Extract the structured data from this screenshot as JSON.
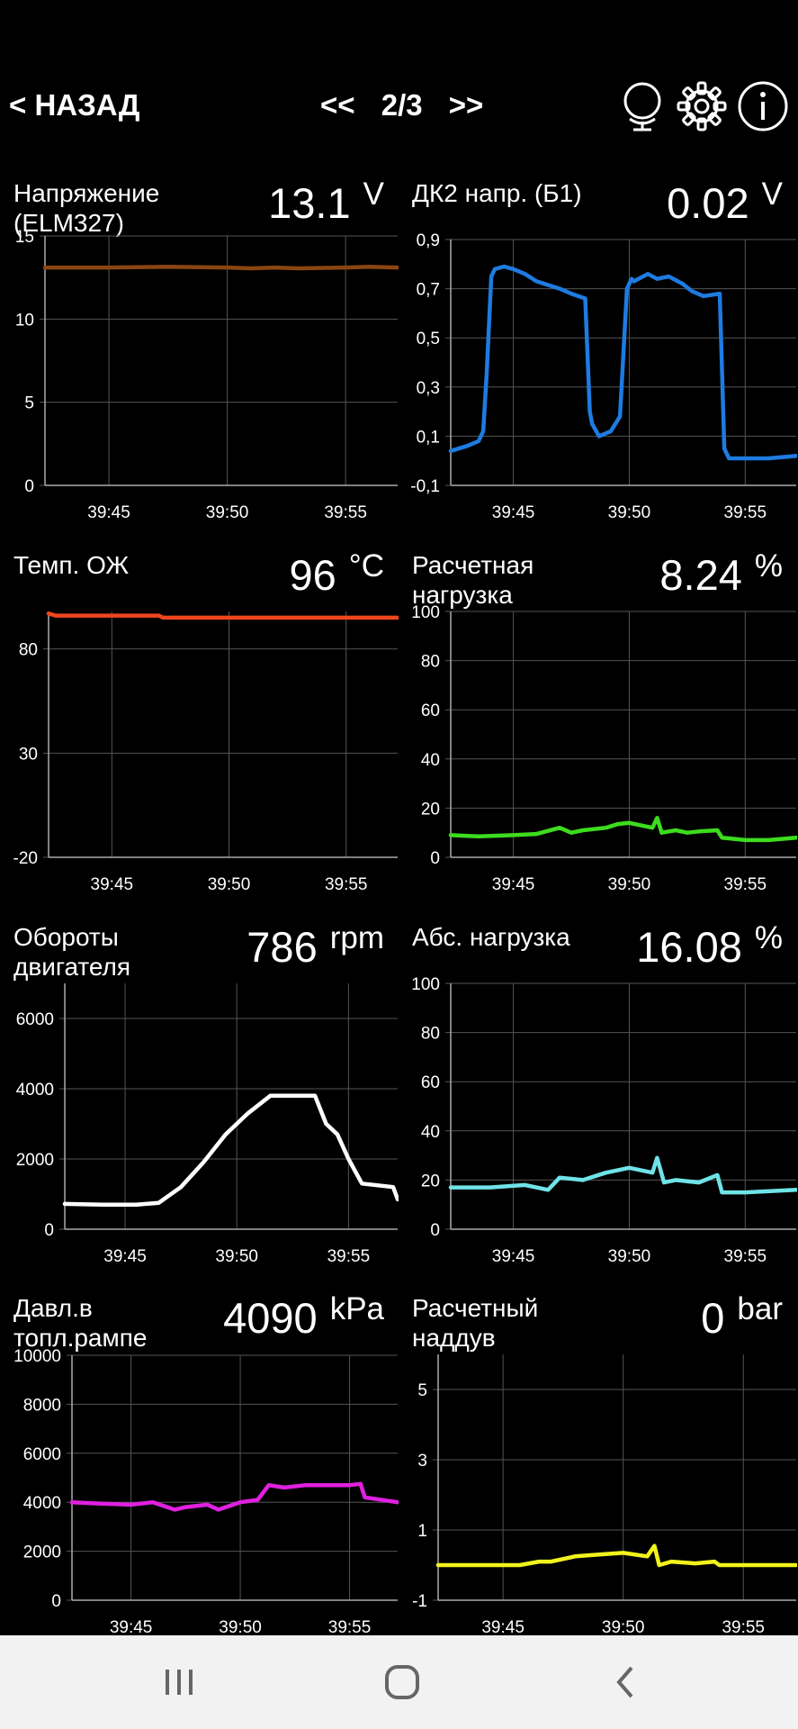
{
  "header": {
    "back_label": "< НАЗАД",
    "prev_label": "<<",
    "page_indicator": "2/3",
    "next_label": ">>"
  },
  "icons": {
    "globe": "globe-icon",
    "settings": "gear-icon",
    "info": "info-icon"
  },
  "navbar": {
    "recents": "recent-apps-icon",
    "home": "home-icon",
    "back": "back-icon"
  },
  "panels": [
    {
      "label": "Напряжение\n(ELM327)",
      "value": "13.1",
      "unit": "V",
      "color": "#8B4513",
      "y_ticks": [
        "0",
        "5",
        "10",
        "15"
      ],
      "x_ticks": [
        "39:45",
        "39:50",
        "39:55"
      ],
      "chart_data": {
        "type": "line",
        "ylim": [
          0,
          15
        ],
        "xlim": [
          42.3,
          57.2
        ],
        "x_tick_values": [
          45,
          50,
          55
        ],
        "series": [
          {
            "x": [
              42.3,
              45,
              47.5,
              50,
              51,
              52,
              53,
              55,
              56,
              57.2
            ],
            "values": [
              13.1,
              13.1,
              13.15,
              13.1,
              13.05,
              13.1,
              13.05,
              13.1,
              13.15,
              13.1
            ]
          }
        ]
      }
    },
    {
      "label": "ДК2 напр. (Б1)",
      "value": "0.02",
      "unit": "V",
      "color": "#1E7BE0",
      "y_ticks": [
        "-0,1",
        "0,1",
        "0,3",
        "0,5",
        "0,7",
        "0,9"
      ],
      "x_ticks": [
        "39:45",
        "39:50",
        "39:55"
      ],
      "chart_data": {
        "type": "line",
        "ylim": [
          -0.1,
          0.9
        ],
        "xlim": [
          42.3,
          57.2
        ],
        "x_tick_values": [
          45,
          50,
          55
        ],
        "series": [
          {
            "x": [
              42.3,
              43,
              43.5,
              43.7,
              43.85,
              44.05,
              44.2,
              44.6,
              45,
              45.5,
              46,
              47,
              47.5,
              48.1,
              48.3,
              48.4,
              48.7,
              49.2,
              49.6,
              49.9,
              50.1,
              50.2,
              50.8,
              51.2,
              51.7,
              52.3,
              52.7,
              53.2,
              53.9,
              54.1,
              54.3,
              55,
              56,
              57.2
            ],
            "values": [
              0.04,
              0.06,
              0.08,
              0.12,
              0.35,
              0.75,
              0.78,
              0.79,
              0.78,
              0.76,
              0.73,
              0.7,
              0.68,
              0.66,
              0.2,
              0.15,
              0.1,
              0.12,
              0.18,
              0.7,
              0.74,
              0.73,
              0.76,
              0.74,
              0.75,
              0.72,
              0.69,
              0.67,
              0.68,
              0.05,
              0.01,
              0.01,
              0.01,
              0.02
            ]
          }
        ]
      }
    },
    {
      "label": "Темп. ОЖ",
      "value": "96",
      "unit": "°C",
      "color": "#F0451C",
      "y_ticks": [
        "-20",
        "30",
        "80"
      ],
      "x_ticks": [
        "39:45",
        "39:50",
        "39:55"
      ],
      "chart_data": {
        "type": "line",
        "ylim": [
          -20,
          98
        ],
        "xlim": [
          42.3,
          57.2
        ],
        "x_tick_values": [
          45,
          50,
          55
        ],
        "series": [
          {
            "x": [
              42.3,
              42.6,
              45,
              47,
              47.2,
              50,
              57.2
            ],
            "values": [
              97,
              96,
              96,
              96,
              95,
              95,
              95
            ]
          }
        ]
      }
    },
    {
      "label": "Расчетная\nнагрузка",
      "value": "8.24",
      "unit": "%",
      "color": "#3DDC1E",
      "y_ticks": [
        "0",
        "20",
        "40",
        "60",
        "80",
        "100"
      ],
      "x_ticks": [
        "39:45",
        "39:50",
        "39:55"
      ],
      "chart_data": {
        "type": "line",
        "ylim": [
          0,
          100
        ],
        "xlim": [
          42.3,
          57.2
        ],
        "x_tick_values": [
          45,
          50,
          55
        ],
        "series": [
          {
            "x": [
              42.3,
              43.5,
              45,
              46,
              47,
              47.5,
              48,
              49,
              49.5,
              50,
              51,
              51.2,
              51.4,
              52,
              52.5,
              53,
              53.8,
              54,
              54.5,
              55,
              56,
              57.2
            ],
            "values": [
              9,
              8.5,
              9,
              9.5,
              12,
              10,
              11,
              12,
              13.5,
              14,
              12,
              16,
              10,
              11,
              10,
              10.5,
              11,
              8,
              7.5,
              7,
              7,
              8
            ]
          }
        ]
      }
    },
    {
      "label": "Обороты\nдвигателя",
      "value": "786",
      "unit": "rpm",
      "color": "#FFFFFF",
      "y_ticks": [
        "0",
        "2000",
        "4000",
        "6000"
      ],
      "x_ticks": [
        "39:45",
        "39:50",
        "39:55"
      ],
      "chart_data": {
        "type": "line",
        "ylim": [
          0,
          7000
        ],
        "xlim": [
          42.3,
          57.2
        ],
        "x_tick_values": [
          45,
          50,
          55
        ],
        "series": [
          {
            "x": [
              42.3,
              44,
              45.5,
              46.5,
              47.5,
              48.5,
              49.5,
              50.5,
              51.5,
              53.5,
              54,
              54.5,
              55,
              55.6,
              57,
              57.2
            ],
            "values": [
              720,
              700,
              700,
              750,
              1200,
              1900,
              2700,
              3300,
              3800,
              3800,
              3000,
              2700,
              2000,
              1300,
              1200,
              850
            ]
          }
        ]
      }
    },
    {
      "label": "Абс. нагрузка",
      "value": "16.08",
      "unit": "%",
      "color": "#6FE3E8",
      "y_ticks": [
        "0",
        "20",
        "40",
        "60",
        "80",
        "100"
      ],
      "x_ticks": [
        "39:45",
        "39:50",
        "39:55"
      ],
      "chart_data": {
        "type": "line",
        "ylim": [
          0,
          100
        ],
        "xlim": [
          42.3,
          57.2
        ],
        "x_tick_values": [
          45,
          50,
          55
        ],
        "series": [
          {
            "x": [
              42.3,
              44,
              45.5,
              46.5,
              47,
              48,
              49,
              50,
              51,
              51.2,
              51.5,
              52,
              53,
              53.8,
              54,
              55,
              57.2
            ],
            "values": [
              17,
              17,
              18,
              16,
              21,
              20,
              23,
              25,
              23,
              29,
              19,
              20,
              19,
              22,
              15,
              15,
              16
            ]
          }
        ]
      }
    },
    {
      "label": "Давл.в\nтопл.рампе",
      "value": "4090",
      "unit": "kPa",
      "color": "#E020E0",
      "y_ticks": [
        "0",
        "2000",
        "4000",
        "6000",
        "8000",
        "10000"
      ],
      "x_ticks": [
        "39:45",
        "39:50",
        "39:55"
      ],
      "chart_data": {
        "type": "line",
        "ylim": [
          0,
          10000
        ],
        "xlim": [
          42.3,
          57.2
        ],
        "x_tick_values": [
          45,
          50,
          55
        ],
        "series": [
          {
            "x": [
              42.3,
              43.5,
              45,
              46,
              47,
              47.5,
              48.5,
              49,
              50,
              50.8,
              51.3,
              52,
              53,
              54,
              55,
              55.5,
              55.7,
              57.2
            ],
            "values": [
              4000,
              3950,
              3900,
              4000,
              3700,
              3800,
              3900,
              3700,
              4000,
              4100,
              4700,
              4600,
              4700,
              4700,
              4700,
              4750,
              4200,
              4000
            ]
          }
        ]
      }
    },
    {
      "label": "Расчетный\nнаддув",
      "value": "0",
      "unit": "bar",
      "color": "#F2F21C",
      "y_ticks": [
        "-1",
        "1",
        "3",
        "5"
      ],
      "x_ticks": [
        "39:45",
        "39:50",
        "39:55"
      ],
      "chart_data": {
        "type": "line",
        "ylim": [
          -1,
          6
        ],
        "xlim": [
          42.3,
          57.2
        ],
        "x_tick_values": [
          45,
          50,
          55
        ],
        "series": [
          {
            "x": [
              42.3,
              44,
              45.7,
              46.5,
              47,
              48,
              49,
              50,
              51,
              51.3,
              51.5,
              52,
              53,
              53.8,
              54,
              55,
              57.2
            ],
            "values": [
              0,
              0,
              0,
              0.1,
              0.1,
              0.25,
              0.3,
              0.35,
              0.25,
              0.55,
              0,
              0.1,
              0.05,
              0.1,
              0,
              0,
              0
            ]
          }
        ]
      }
    }
  ]
}
